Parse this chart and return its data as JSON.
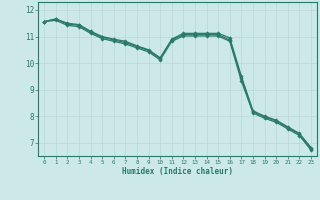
{
  "xlabel": "Humidex (Indice chaleur)",
  "background_color": "#cce8e8",
  "line_color": "#2a7a6a",
  "grid_color": "#b8d8d8",
  "xlim": [
    -0.5,
    23.5
  ],
  "ylim": [
    6.5,
    12.3
  ],
  "yticks": [
    7,
    8,
    9,
    10,
    11,
    12
  ],
  "xticks": [
    0,
    1,
    2,
    3,
    4,
    5,
    6,
    7,
    8,
    9,
    10,
    11,
    12,
    13,
    14,
    15,
    16,
    17,
    18,
    19,
    20,
    21,
    22,
    23
  ],
  "line1": [
    11.56,
    11.66,
    11.5,
    11.45,
    11.2,
    11.0,
    10.9,
    10.82,
    10.65,
    10.5,
    10.2,
    10.9,
    11.12,
    11.12,
    11.12,
    11.12,
    10.95,
    9.5,
    8.2,
    8.0,
    7.85,
    7.6,
    7.35,
    6.82
  ],
  "line2": [
    11.56,
    11.66,
    11.47,
    11.42,
    11.17,
    10.97,
    10.87,
    10.77,
    10.62,
    10.47,
    10.17,
    10.87,
    11.07,
    11.07,
    11.07,
    11.07,
    10.87,
    9.42,
    8.17,
    7.97,
    7.82,
    7.57,
    7.32,
    6.77
  ],
  "line3": [
    11.56,
    11.61,
    11.42,
    11.37,
    11.12,
    10.92,
    10.82,
    10.72,
    10.57,
    10.42,
    10.12,
    10.82,
    11.02,
    11.02,
    11.02,
    11.02,
    10.82,
    9.32,
    8.12,
    7.92,
    7.77,
    7.52,
    7.27,
    6.72
  ]
}
